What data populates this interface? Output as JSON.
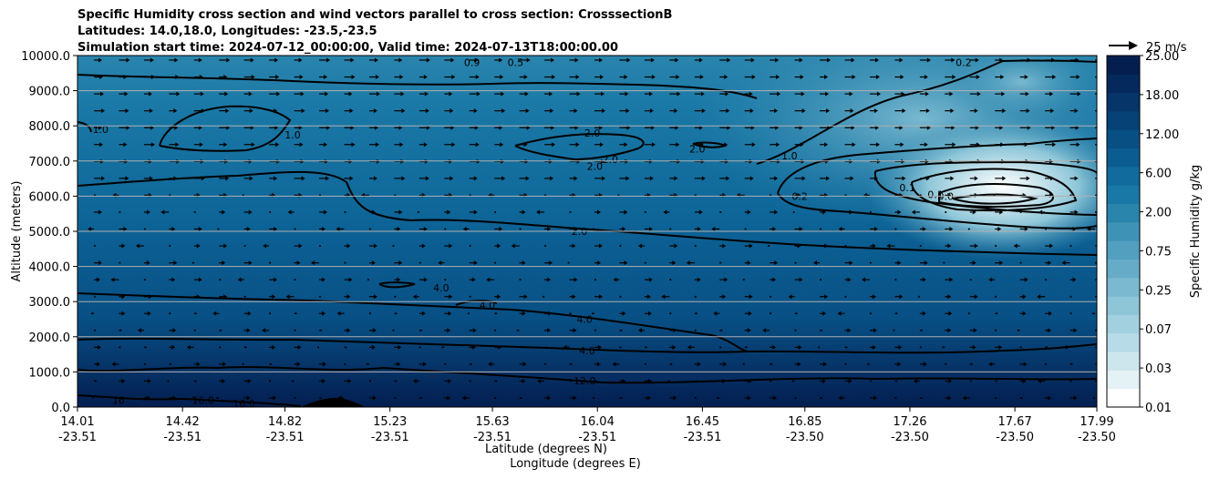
{
  "chart_data": {
    "type": "contourf",
    "title_lines": [
      "Specific Humidity cross section and wind vectors parallel to cross section: CrosssectionB",
      "Latitudes: 14.0,18.0, Longitudes: -23.5,-23.5",
      "Simulation start time: 2024-07-12_00:00:00, Valid time: 2024-07-13T18:00:00.00"
    ],
    "ylabel": "Altitude (meters)",
    "xlabel_lines": [
      "Latitude (degrees N)",
      "Longitude (degrees E)"
    ],
    "ylim": [
      0,
      10000
    ],
    "y_ticks": [
      "0.0",
      "1000.0",
      "2000.0",
      "3000.0",
      "4000.0",
      "5000.0",
      "6000.0",
      "7000.0",
      "8000.0",
      "9000.0",
      "10000.0"
    ],
    "x_ticks": [
      {
        "lat": "14.01",
        "lon": "-23.51"
      },
      {
        "lat": "14.42",
        "lon": "-23.51"
      },
      {
        "lat": "14.82",
        "lon": "-23.51"
      },
      {
        "lat": "15.23",
        "lon": "-23.51"
      },
      {
        "lat": "15.63",
        "lon": "-23.51"
      },
      {
        "lat": "16.04",
        "lon": "-23.51"
      },
      {
        "lat": "16.45",
        "lon": "-23.51"
      },
      {
        "lat": "16.85",
        "lon": "-23.50"
      },
      {
        "lat": "17.26",
        "lon": "-23.50"
      },
      {
        "lat": "17.67",
        "lon": "-23.50"
      },
      {
        "lat": "17.99",
        "lon": "-23.50"
      }
    ],
    "colorbar": {
      "label": "Specific Humidity g/kg",
      "ticks": [
        "0.01",
        "0.03",
        "0.07",
        "0.25",
        "0.75",
        "2.00",
        "6.00",
        "12.00",
        "18.00",
        "25.00"
      ],
      "colors": [
        "#ffffff",
        "#e4f1f5",
        "#cde6ee",
        "#b7dbe7",
        "#a2d0df",
        "#8ec6d8",
        "#7ab9d0",
        "#66acc8",
        "#529fbf",
        "#3e92b6",
        "#2a85ad",
        "#1a78a6",
        "#116b9c",
        "#0b5d91",
        "#084f84",
        "#074276",
        "#063569",
        "#05295c",
        "#041e50"
      ]
    },
    "wind_key": {
      "label": "25 m/s",
      "speed": 25
    },
    "contour_labels": [
      {
        "text": "0.9",
        "lat": 15.55,
        "alt": 9800
      },
      {
        "text": "0.5",
        "lat": 15.72,
        "alt": 9800
      },
      {
        "text": "0.2",
        "lat": 17.47,
        "alt": 9800
      },
      {
        "text": "1.0",
        "lat": 14.1,
        "alt": 7900
      },
      {
        "text": "1.0",
        "lat": 14.85,
        "alt": 7750
      },
      {
        "text": "2.0",
        "lat": 16.02,
        "alt": 7800
      },
      {
        "text": "2.0",
        "lat": 16.09,
        "alt": 7050
      },
      {
        "text": "2.0",
        "lat": 16.03,
        "alt": 6850
      },
      {
        "text": "2.0",
        "lat": 16.43,
        "alt": 7350
      },
      {
        "text": "1.0",
        "lat": 16.79,
        "alt": 7150
      },
      {
        "text": "0.2",
        "lat": 16.83,
        "alt": 6000
      },
      {
        "text": "0.1",
        "lat": 17.25,
        "alt": 6250
      },
      {
        "text": "0.1",
        "lat": 17.36,
        "alt": 6050
      },
      {
        "text": "0.0",
        "lat": 17.4,
        "alt": 6000
      },
      {
        "text": "2.0",
        "lat": 15.97,
        "alt": 5000
      },
      {
        "text": "4.0",
        "lat": 15.43,
        "alt": 3400
      },
      {
        "text": "4.0",
        "lat": 15.61,
        "alt": 2900
      },
      {
        "text": "4.0",
        "lat": 15.99,
        "alt": 2500
      },
      {
        "text": "4.0",
        "lat": 16.0,
        "alt": 1600
      },
      {
        "text": "12.0",
        "lat": 15.99,
        "alt": 750
      },
      {
        "text": "16",
        "lat": 14.17,
        "alt": 200
      },
      {
        "text": "16.0",
        "lat": 14.5,
        "alt": 200
      },
      {
        "text": "16.0",
        "lat": 14.66,
        "alt": 100
      }
    ]
  }
}
